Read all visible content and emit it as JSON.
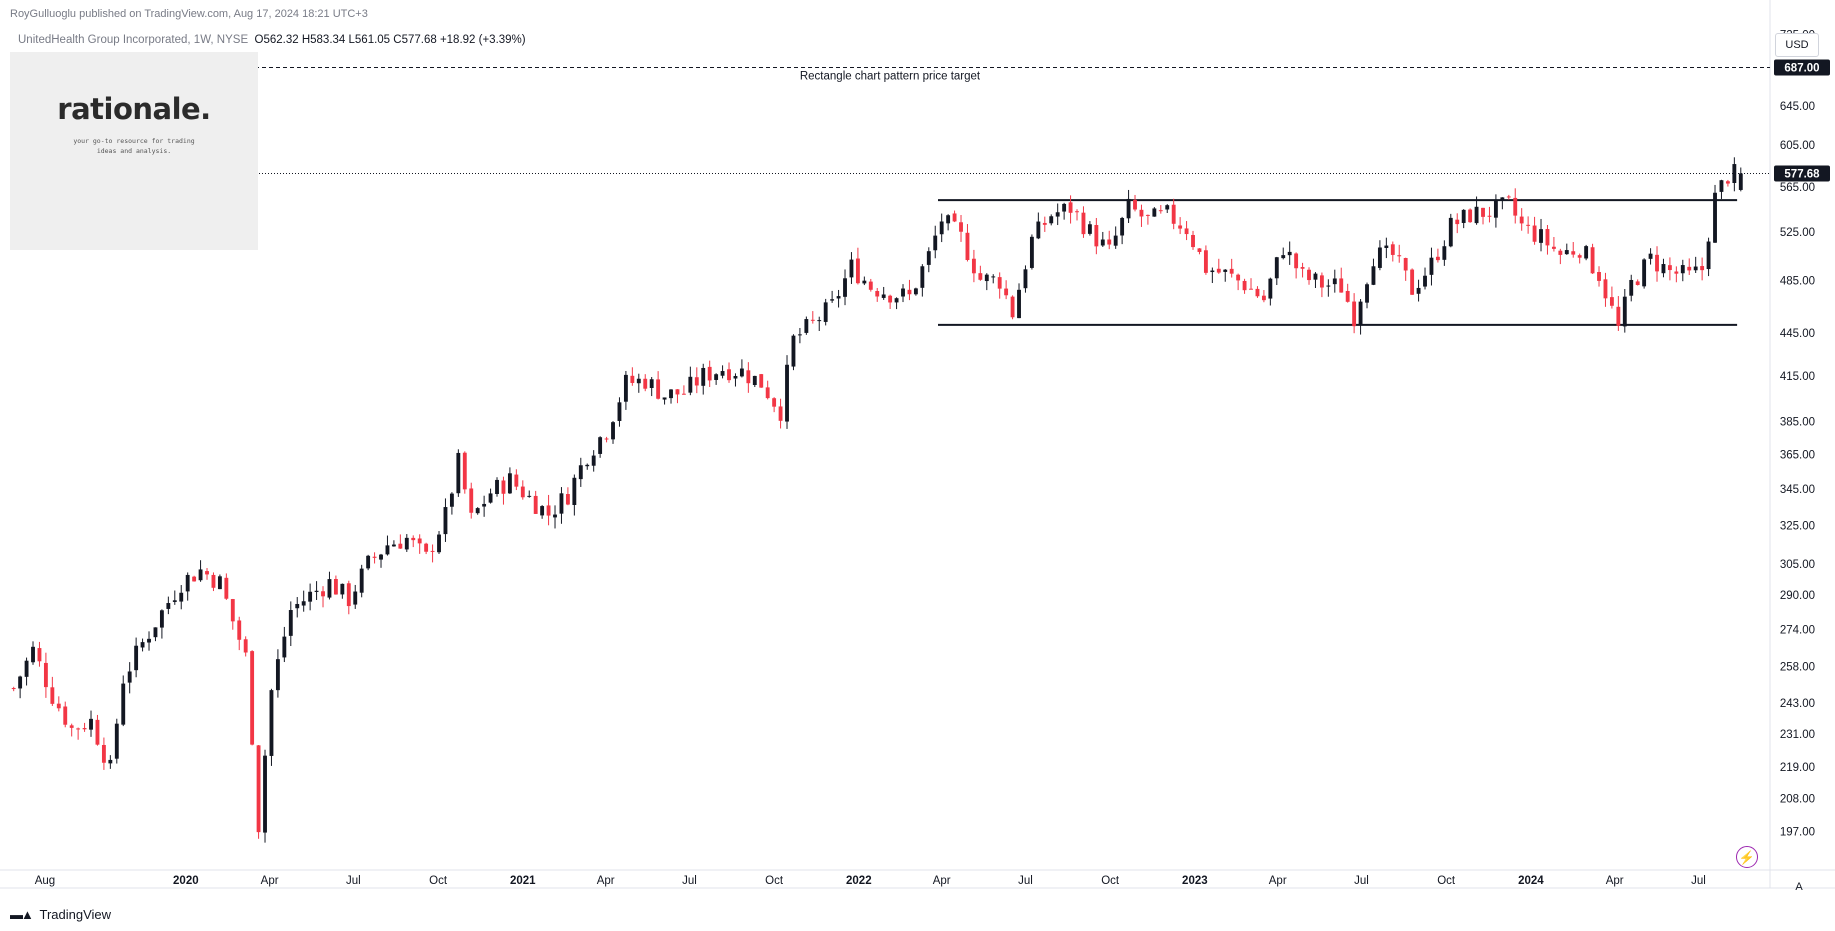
{
  "header": {
    "publisher": "RoyGulluoglu published on TradingView.com, Aug 17, 2024 18:21 UTC+3",
    "symbol": "UnitedHealth Group Incorporated, 1W, NYSE",
    "ohlc": "O562.32  H583.34  L561.05  C577.68  +18.92 (+3.39%)"
  },
  "logo": {
    "title": "rationale.",
    "tagline_1": "your go-to resource for trading",
    "tagline_2": "ideas and analysis."
  },
  "toolbar": {
    "currency": "USD",
    "autoscale_label": "A",
    "alert_icon": "lightning-icon"
  },
  "footer": {
    "brand": "TradingView"
  },
  "colors": {
    "up": "#131722",
    "down": "#f23645",
    "grid": "#f0f3fa",
    "text": "#131722",
    "axis_text": "#131722"
  },
  "chart_data": {
    "type": "candlestick",
    "symbol": "UNH",
    "interval": "1W",
    "ylim": [
      185,
      740
    ],
    "y_scale": "log",
    "y_ticks": [
      "725.00",
      "645.00",
      "605.00",
      "565.00",
      "525.00",
      "485.00",
      "445.00",
      "415.00",
      "385.00",
      "365.00",
      "345.00",
      "325.00",
      "305.00",
      "290.00",
      "274.00",
      "258.00",
      "243.00",
      "231.00",
      "219.00",
      "208.00",
      "197.00"
    ],
    "y_tick_values": [
      725,
      645,
      605,
      565,
      525,
      485,
      445,
      415,
      385,
      365,
      345,
      325,
      305,
      290,
      274,
      258,
      243,
      231,
      219,
      208,
      197
    ],
    "x_labels": [
      "Aug",
      "2020",
      "Apr",
      "Jul",
      "Oct",
      "2021",
      "Apr",
      "Jul",
      "Oct",
      "2022",
      "Apr",
      "Jul",
      "Oct",
      "2023",
      "Apr",
      "Jul",
      "Oct",
      "2024",
      "Apr",
      "Jul"
    ],
    "x_label_bold": [
      false,
      true,
      false,
      false,
      false,
      true,
      false,
      false,
      false,
      true,
      false,
      false,
      false,
      true,
      false,
      false,
      false,
      true,
      false,
      false
    ],
    "x_label_dates": [
      "2019-08-01",
      "2020-01-01",
      "2020-04-01",
      "2020-07-01",
      "2020-10-01",
      "2021-01-01",
      "2021-04-01",
      "2021-07-01",
      "2021-10-01",
      "2022-01-01",
      "2022-04-01",
      "2022-07-01",
      "2022-10-01",
      "2023-01-01",
      "2023-04-01",
      "2023-07-01",
      "2023-10-01",
      "2024-01-01",
      "2024-04-01",
      "2024-07-01"
    ],
    "last_price": "577.68",
    "target_price": "687.00",
    "annotations": {
      "target_label": "Rectangle chart pattern price target",
      "rectangle": {
        "top": 553,
        "bottom": 451,
        "start": "2022-03-28",
        "end": "2024-08-12"
      },
      "target_line": {
        "price": 687
      }
    },
    "weekly_closes": [
      {
        "date": "2019-06-28",
        "close": 249
      },
      {
        "date": "2019-07-19",
        "close": 265
      },
      {
        "date": "2019-08-09",
        "close": 246
      },
      {
        "date": "2019-08-30",
        "close": 233
      },
      {
        "date": "2019-09-20",
        "close": 236
      },
      {
        "date": "2019-10-11",
        "close": 218
      },
      {
        "date": "2019-10-25",
        "close": 253
      },
      {
        "date": "2019-11-15",
        "close": 268
      },
      {
        "date": "2019-12-06",
        "close": 282
      },
      {
        "date": "2019-12-27",
        "close": 296
      },
      {
        "date": "2020-01-17",
        "close": 302
      },
      {
        "date": "2020-02-07",
        "close": 296
      },
      {
        "date": "2020-02-21",
        "close": 278
      },
      {
        "date": "2020-03-06",
        "close": 262
      },
      {
        "date": "2020-03-20",
        "close": 199
      },
      {
        "date": "2020-04-03",
        "close": 248
      },
      {
        "date": "2020-04-24",
        "close": 283
      },
      {
        "date": "2020-05-15",
        "close": 290
      },
      {
        "date": "2020-06-05",
        "close": 296
      },
      {
        "date": "2020-06-26",
        "close": 288
      },
      {
        "date": "2020-07-17",
        "close": 305
      },
      {
        "date": "2020-08-07",
        "close": 315
      },
      {
        "date": "2020-08-28",
        "close": 318
      },
      {
        "date": "2020-09-18",
        "close": 308
      },
      {
        "date": "2020-10-09",
        "close": 330
      },
      {
        "date": "2020-10-23",
        "close": 360
      },
      {
        "date": "2020-11-06",
        "close": 328
      },
      {
        "date": "2020-11-27",
        "close": 343
      },
      {
        "date": "2020-12-18",
        "close": 350
      },
      {
        "date": "2021-01-08",
        "close": 340
      },
      {
        "date": "2021-01-29",
        "close": 331
      },
      {
        "date": "2021-02-19",
        "close": 342
      },
      {
        "date": "2021-03-12",
        "close": 365
      },
      {
        "date": "2021-04-02",
        "close": 380
      },
      {
        "date": "2021-04-23",
        "close": 410
      },
      {
        "date": "2021-05-14",
        "close": 412
      },
      {
        "date": "2021-06-04",
        "close": 402
      },
      {
        "date": "2021-06-25",
        "close": 404
      },
      {
        "date": "2021-07-16",
        "close": 415
      },
      {
        "date": "2021-08-06",
        "close": 420
      },
      {
        "date": "2021-08-27",
        "close": 418
      },
      {
        "date": "2021-09-17",
        "close": 410
      },
      {
        "date": "2021-10-08",
        "close": 392
      },
      {
        "date": "2021-10-22",
        "close": 440
      },
      {
        "date": "2021-11-12",
        "close": 452
      },
      {
        "date": "2021-12-03",
        "close": 465
      },
      {
        "date": "2021-12-24",
        "close": 496
      },
      {
        "date": "2022-01-14",
        "close": 480
      },
      {
        "date": "2022-02-04",
        "close": 475
      },
      {
        "date": "2022-02-25",
        "close": 472
      },
      {
        "date": "2022-03-18",
        "close": 505
      },
      {
        "date": "2022-04-01",
        "close": 536
      },
      {
        "date": "2022-04-22",
        "close": 520
      },
      {
        "date": "2022-05-13",
        "close": 486
      },
      {
        "date": "2022-06-03",
        "close": 485
      },
      {
        "date": "2022-06-17",
        "close": 460
      },
      {
        "date": "2022-07-08",
        "close": 518
      },
      {
        "date": "2022-07-29",
        "close": 540
      },
      {
        "date": "2022-08-19",
        "close": 546
      },
      {
        "date": "2022-09-09",
        "close": 525
      },
      {
        "date": "2022-09-30",
        "close": 508
      },
      {
        "date": "2022-10-21",
        "close": 546
      },
      {
        "date": "2022-11-11",
        "close": 535
      },
      {
        "date": "2022-12-02",
        "close": 540
      },
      {
        "date": "2022-12-23",
        "close": 528
      },
      {
        "date": "2023-01-13",
        "close": 495
      },
      {
        "date": "2023-02-03",
        "close": 490
      },
      {
        "date": "2023-02-24",
        "close": 482
      },
      {
        "date": "2023-03-17",
        "close": 470
      },
      {
        "date": "2023-04-07",
        "close": 512
      },
      {
        "date": "2023-04-28",
        "close": 488
      },
      {
        "date": "2023-05-19",
        "close": 482
      },
      {
        "date": "2023-06-09",
        "close": 480
      },
      {
        "date": "2023-06-23",
        "close": 458
      },
      {
        "date": "2023-07-14",
        "close": 505
      },
      {
        "date": "2023-08-04",
        "close": 505
      },
      {
        "date": "2023-08-25",
        "close": 478
      },
      {
        "date": "2023-09-15",
        "close": 498
      },
      {
        "date": "2023-10-06",
        "close": 530
      },
      {
        "date": "2023-10-27",
        "close": 540
      },
      {
        "date": "2023-11-17",
        "close": 543
      },
      {
        "date": "2023-12-08",
        "close": 548
      },
      {
        "date": "2023-12-22",
        "close": 530
      },
      {
        "date": "2024-01-12",
        "close": 520
      },
      {
        "date": "2024-02-02",
        "close": 506
      },
      {
        "date": "2024-02-23",
        "close": 512
      },
      {
        "date": "2024-03-15",
        "close": 490
      },
      {
        "date": "2024-04-05",
        "close": 448
      },
      {
        "date": "2024-04-19",
        "close": 482
      },
      {
        "date": "2024-05-10",
        "close": 502
      },
      {
        "date": "2024-05-31",
        "close": 492
      },
      {
        "date": "2024-06-21",
        "close": 488
      },
      {
        "date": "2024-07-05",
        "close": 494
      },
      {
        "date": "2024-07-19",
        "close": 555
      },
      {
        "date": "2024-08-02",
        "close": 576
      },
      {
        "date": "2024-08-16",
        "close": 577.68
      }
    ]
  }
}
